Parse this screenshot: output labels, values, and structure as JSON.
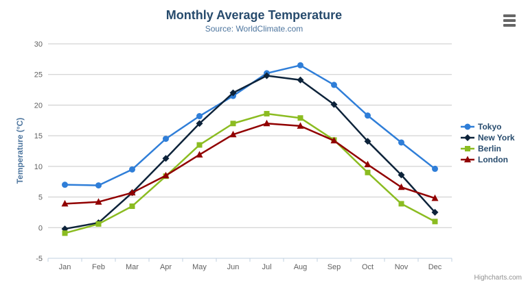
{
  "header": {
    "title": "Monthly Average Temperature",
    "subtitle": "Source: WorldClimate.com"
  },
  "chart_data": {
    "type": "line",
    "title": "Monthly Average Temperature",
    "subtitle": "Source: WorldClimate.com",
    "categories": [
      "Jan",
      "Feb",
      "Mar",
      "Apr",
      "May",
      "Jun",
      "Jul",
      "Aug",
      "Sep",
      "Oct",
      "Nov",
      "Dec"
    ],
    "xlabel": "",
    "ylabel": "Temperature (°C)",
    "ylim": [
      -5,
      30
    ],
    "y_ticks": [
      -5,
      0,
      5,
      10,
      15,
      20,
      25,
      30
    ],
    "grid": true,
    "legend_position": "right",
    "series": [
      {
        "name": "Tokyo",
        "color": "#2f7ed8",
        "marker": "circle",
        "values": [
          7.0,
          6.9,
          9.5,
          14.5,
          18.2,
          21.5,
          25.2,
          26.5,
          23.3,
          18.3,
          13.9,
          9.6
        ]
      },
      {
        "name": "New York",
        "color": "#0d233a",
        "marker": "diamond",
        "values": [
          -0.2,
          0.8,
          5.7,
          11.3,
          17.0,
          22.0,
          24.8,
          24.1,
          20.1,
          14.1,
          8.6,
          2.5
        ]
      },
      {
        "name": "Berlin",
        "color": "#8bbc21",
        "marker": "square",
        "values": [
          -0.9,
          0.6,
          3.5,
          8.4,
          13.5,
          17.0,
          18.6,
          17.9,
          14.3,
          9.0,
          3.9,
          1.0
        ]
      },
      {
        "name": "London",
        "color": "#910000",
        "marker": "triangle",
        "values": [
          3.9,
          4.2,
          5.7,
          8.5,
          11.9,
          15.2,
          17.0,
          16.6,
          14.2,
          10.3,
          6.6,
          4.8
        ]
      }
    ]
  },
  "icons": {
    "export_menu": "hamburger-icon"
  },
  "colors": {
    "title": "#274b6d",
    "subtitle": "#4d759e",
    "axis_labels": "#606060",
    "axis_title": "#4d759e",
    "grid": "#c8c8c8",
    "axis_line": "#c0d0e0",
    "legend_text": "#274b6d",
    "credits": "#909090"
  },
  "footer": {
    "credits": "Highcharts.com"
  }
}
